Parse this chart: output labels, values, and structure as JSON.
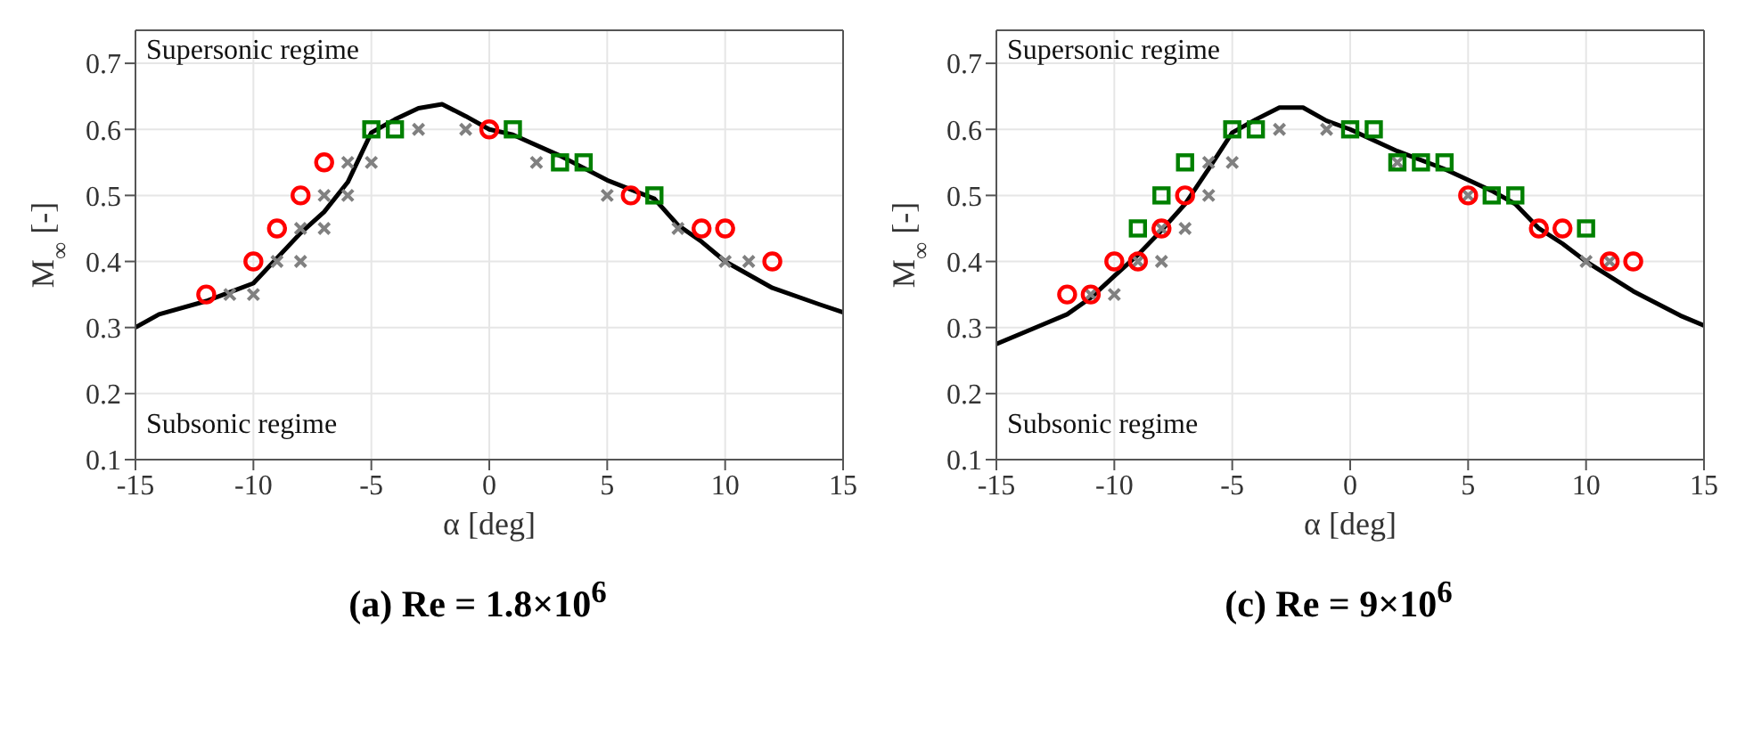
{
  "chart_data": [
    {
      "type": "scatter",
      "title": "(a) Re = 1.8×10$^{6}$",
      "xlabel": "α [deg]",
      "ylabel": "M$_{∞}$ [-]",
      "xlim": [
        -15,
        15
      ],
      "xticks": [
        -15,
        -10,
        -5,
        0,
        5,
        10,
        15
      ],
      "ylim": [
        0.1,
        0.75
      ],
      "yticks": [
        0.1,
        0.2,
        0.3,
        0.4,
        0.5,
        0.6,
        0.7
      ],
      "grid": true,
      "annotations": [
        "Supersonic regime",
        "Subsonic regime"
      ],
      "series": [
        {
          "type": "line",
          "color": "#000000",
          "marker": "none",
          "line_style": "solid",
          "x": [
            -15,
            -14,
            -12,
            -10,
            -8,
            -7,
            -6,
            -5,
            -4,
            -3,
            -2,
            -1,
            0,
            1,
            3,
            5,
            7,
            8,
            9,
            10,
            12,
            14,
            15
          ],
          "values": [
            0.3,
            0.32,
            0.34,
            0.367,
            0.443,
            0.475,
            0.52,
            0.595,
            0.615,
            0.632,
            0.638,
            0.62,
            0.6,
            0.592,
            0.56,
            0.523,
            0.495,
            0.455,
            0.43,
            0.4,
            0.36,
            0.335,
            0.323
          ]
        },
        {
          "color": "#808080",
          "marker": "cross",
          "x": [
            -11,
            -10,
            -9,
            -8,
            -8,
            -7,
            -7,
            -6,
            -6,
            -5,
            -3,
            -1,
            2,
            5,
            8,
            10,
            11
          ],
          "values": [
            0.35,
            0.35,
            0.4,
            0.4,
            0.45,
            0.45,
            0.5,
            0.5,
            0.55,
            0.55,
            0.6,
            0.6,
            0.55,
            0.5,
            0.45,
            0.4,
            0.4
          ]
        },
        {
          "color": "#ff0000",
          "marker": "circle",
          "x": [
            -12,
            -10,
            -9,
            -8,
            -7,
            0,
            6,
            9,
            10,
            12
          ],
          "values": [
            0.35,
            0.4,
            0.45,
            0.5,
            0.55,
            0.6,
            0.5,
            0.45,
            0.45,
            0.4
          ]
        },
        {
          "color": "#008000",
          "marker": "square",
          "x": [
            -5,
            -4,
            1,
            3,
            4,
            7
          ],
          "values": [
            0.6,
            0.6,
            0.6,
            0.55,
            0.55,
            0.5
          ]
        }
      ]
    },
    {
      "type": "scatter",
      "title": "(c) Re = 9×10$^{6}$",
      "xlabel": "α [deg]",
      "ylabel": "M$_{∞}$ [-]",
      "xlim": [
        -15,
        15
      ],
      "xticks": [
        -15,
        -10,
        -5,
        0,
        5,
        10,
        15
      ],
      "ylim": [
        0.1,
        0.75
      ],
      "yticks": [
        0.1,
        0.2,
        0.3,
        0.4,
        0.5,
        0.6,
        0.7
      ],
      "grid": true,
      "annotations": [
        "Supersonic regime",
        "Subsonic regime"
      ],
      "series": [
        {
          "type": "line",
          "color": "#000000",
          "marker": "none",
          "line_style": "solid",
          "x": [
            -15,
            -13,
            -12,
            -11,
            -10,
            -9,
            -8,
            -7,
            -6,
            -5,
            -4,
            -3,
            -2,
            -1,
            0,
            2,
            4,
            6,
            7,
            8,
            9,
            10,
            12,
            14,
            15
          ],
          "values": [
            0.275,
            0.305,
            0.32,
            0.345,
            0.378,
            0.41,
            0.447,
            0.487,
            0.54,
            0.595,
            0.615,
            0.633,
            0.633,
            0.613,
            0.6,
            0.567,
            0.54,
            0.507,
            0.487,
            0.45,
            0.427,
            0.4,
            0.355,
            0.318,
            0.303
          ]
        },
        {
          "color": "#808080",
          "marker": "cross",
          "x": [
            -11,
            -10,
            -9,
            -8,
            -8,
            -7,
            -6,
            -6,
            -5,
            -3,
            -1,
            2,
            5,
            10,
            11
          ],
          "values": [
            0.35,
            0.35,
            0.4,
            0.4,
            0.45,
            0.45,
            0.5,
            0.55,
            0.55,
            0.6,
            0.6,
            0.55,
            0.5,
            0.4,
            0.4
          ]
        },
        {
          "color": "#ff0000",
          "marker": "circle",
          "x": [
            -12,
            -11,
            -10,
            -9,
            -8,
            -7,
            5,
            8,
            9,
            11,
            12
          ],
          "values": [
            0.35,
            0.35,
            0.4,
            0.4,
            0.45,
            0.5,
            0.5,
            0.45,
            0.45,
            0.4,
            0.4
          ]
        },
        {
          "color": "#008000",
          "marker": "square",
          "x": [
            -9,
            -8,
            -7,
            -5,
            -4,
            0,
            1,
            2,
            3,
            4,
            6,
            7,
            10
          ],
          "values": [
            0.45,
            0.5,
            0.55,
            0.6,
            0.6,
            0.6,
            0.6,
            0.55,
            0.55,
            0.55,
            0.5,
            0.5,
            0.45
          ]
        }
      ]
    }
  ]
}
